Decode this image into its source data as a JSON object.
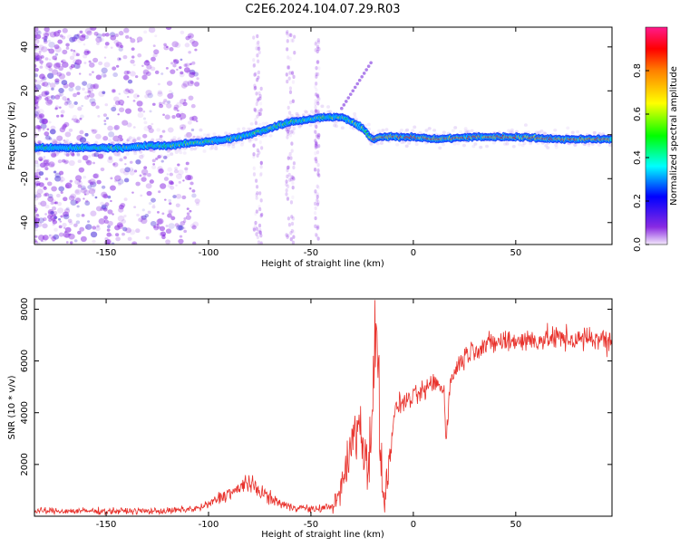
{
  "title": "C2E6.2024.104.07.29.R03",
  "colors": {
    "snr_line": "#e8302a",
    "spectrum_low": "#8a2be2",
    "axis": "#000000"
  },
  "chart_data": [
    {
      "type": "heatmap",
      "name": "spectrogram",
      "title": "C2E6.2024.104.07.29.R03",
      "xlabel": "Height of straight line (km)",
      "ylabel": "Frequency (Hz)",
      "xlim": [
        -185,
        97
      ],
      "ylim": [
        -50,
        49
      ],
      "xticks": [
        -150,
        -100,
        -50,
        0,
        50
      ],
      "yticks": [
        -40,
        -20,
        0,
        20,
        40
      ],
      "ridge": {
        "x": [
          -185,
          -160,
          -140,
          -130,
          -120,
          -110,
          -100,
          -90,
          -80,
          -70,
          -60,
          -50,
          -45,
          -40,
          -35,
          -30,
          -25,
          -22,
          -20,
          -15,
          -10,
          -5,
          0,
          10,
          30,
          50,
          70,
          97
        ],
        "freq": [
          -6,
          -6,
          -6,
          -5,
          -5,
          -4,
          -3,
          -2,
          0,
          3,
          6,
          7,
          8,
          8,
          8,
          6,
          3,
          0,
          -2,
          -1,
          -1,
          -1,
          -1,
          -2,
          -1,
          -1,
          -2,
          -2
        ]
      },
      "colorbar": {
        "label": "Normalized spectral amplitude",
        "range": [
          0,
          1
        ],
        "ticks": [
          "0.0",
          "0.2",
          "0.4",
          "0.6",
          "0.8"
        ],
        "tick_values": [
          0,
          0.2,
          0.4,
          0.6,
          0.8
        ]
      }
    },
    {
      "type": "line",
      "name": "snr",
      "xlabel": "Height of straight line (km)",
      "ylabel": "SNR (10 * v/v)",
      "xlim": [
        -185,
        97
      ],
      "ylim": [
        0,
        8400
      ],
      "xticks": [
        -150,
        -100,
        -50,
        0,
        50
      ],
      "yticks": [
        2000,
        4000,
        6000,
        8000
      ],
      "series": [
        {
          "name": "SNR",
          "x": [
            -185,
            -150,
            -120,
            -105,
            -100,
            -95,
            -90,
            -85,
            -82,
            -80,
            -75,
            -70,
            -65,
            -60,
            -55,
            -50,
            -45,
            -40,
            -37,
            -35,
            -32,
            -30,
            -28,
            -25,
            -22,
            -20,
            -19,
            -18,
            -17,
            -16,
            -15,
            -14,
            -13,
            -12,
            -10,
            -8,
            -5,
            0,
            5,
            10,
            15,
            16,
            18,
            20,
            25,
            30,
            35,
            40,
            50,
            60,
            70,
            80,
            90,
            97
          ],
          "y": [
            200,
            200,
            200,
            300,
            450,
            700,
            900,
            1000,
            1400,
            1200,
            1000,
            700,
            500,
            350,
            350,
            250,
            300,
            400,
            600,
            1200,
            2000,
            2800,
            3700,
            3000,
            2000,
            3500,
            6000,
            8000,
            5500,
            3000,
            1200,
            200,
            1500,
            2500,
            3500,
            4300,
            4400,
            4600,
            4800,
            5200,
            4900,
            3000,
            5100,
            5600,
            6200,
            6500,
            6600,
            6700,
            6800,
            6800,
            6900,
            6800,
            6900,
            6700
          ]
        }
      ]
    }
  ]
}
